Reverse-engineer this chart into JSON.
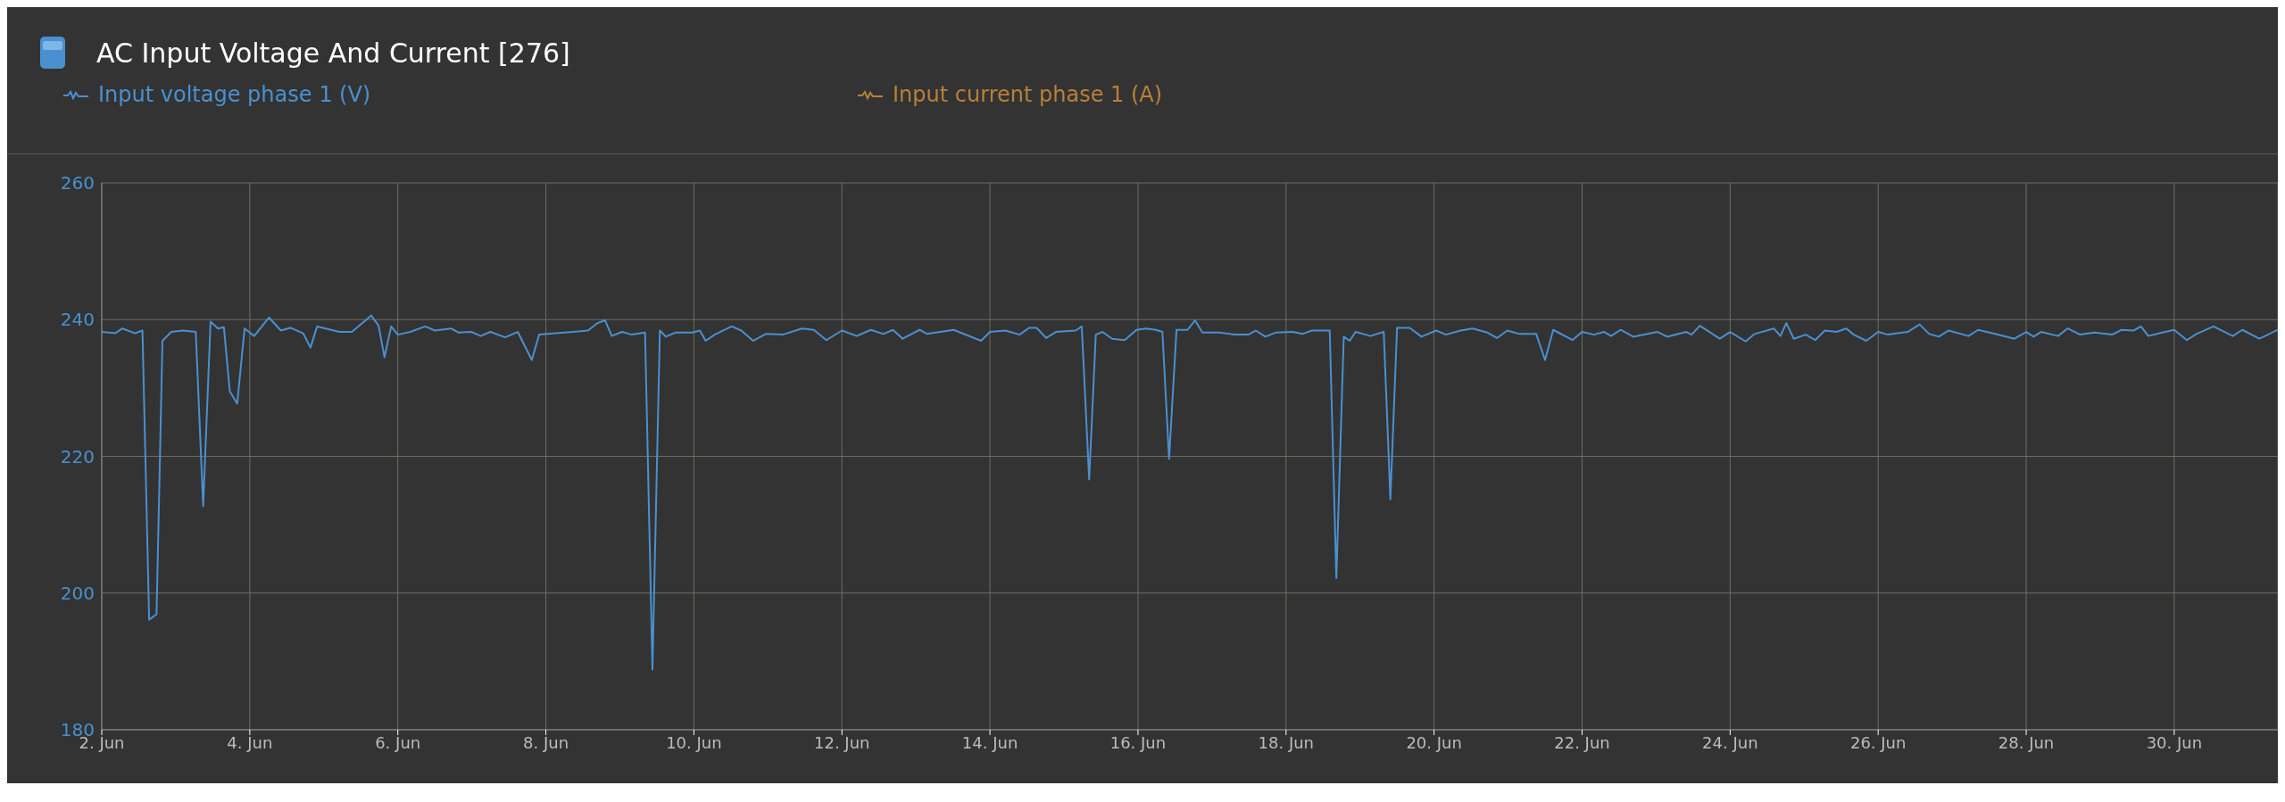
{
  "chart_data": {
    "type": "line",
    "title": "AC Input Voltage And Current [276]",
    "legend": "top left",
    "grid": true,
    "marker": "none",
    "line_style": "solid",
    "xlim": [
      "--06-02",
      "--07-01T09:36"
    ],
    "xticks": [
      {
        "value": "--06-02",
        "label": "2. Jun"
      },
      {
        "value": "--06-04",
        "label": "4. Jun"
      },
      {
        "value": "--06-06",
        "label": "6. Jun"
      },
      {
        "value": "--06-08",
        "label": "8. Jun"
      },
      {
        "value": "--06-10",
        "label": "10. Jun"
      },
      {
        "value": "--06-12",
        "label": "12. Jun"
      },
      {
        "value": "--06-14",
        "label": "14. Jun"
      },
      {
        "value": "--06-16",
        "label": "16. Jun"
      },
      {
        "value": "--06-18",
        "label": "18. Jun"
      },
      {
        "value": "--06-20",
        "label": "20. Jun"
      },
      {
        "value": "--06-22",
        "label": "22. Jun"
      },
      {
        "value": "--06-24",
        "label": "24. Jun"
      },
      {
        "value": "--06-26",
        "label": "26. Jun"
      },
      {
        "value": "--06-28",
        "label": "28. Jun"
      },
      {
        "value": "--06-30",
        "label": "30. Jun"
      }
    ],
    "ylim": [
      180,
      260
    ],
    "yticks": [
      180,
      200,
      220,
      240,
      260
    ],
    "series": [
      {
        "name": "Input voltage phase 1 (V)",
        "color": "#4a90d0",
        "x": [
          "--06-02T00:00",
          "--06-02T04:19",
          "--06-02T06:43",
          "--06-02T10:48",
          "--06-02T13:12",
          "--06-02T15:22",
          "--06-02T17:46",
          "--06-02T19:41",
          "--06-02T22:34",
          "--06-03T02:24",
          "--06-03T06:29",
          "--06-03T08:53",
          "--06-03T11:17",
          "--06-03T13:41",
          "--06-03T15:36",
          "--06-03T17:31",
          "--06-03T19:55",
          "--06-03T22:19",
          "--06-04T01:26",
          "--06-04T06:14",
          "--06-04T10:05",
          "--06-04T13:12",
          "--06-04T17:17",
          "--06-04T19:41",
          "--06-04T21:50",
          "--06-05T05:02",
          "--06-05T09:07",
          "--06-05T15:22",
          "--06-05T17:46",
          "--06-05T19:41",
          "--06-05T21:50",
          "--06-06T00:00",
          "--06-06T04:05",
          "--06-06T08:53",
          "--06-06T12:00",
          "--06-06T17:17",
          "--06-06T19:41",
          "--06-06T23:46",
          "--06-07T02:53",
          "--06-07T06:00",
          "--06-07T10:48",
          "--06-07T14:53",
          "--06-07T19:26",
          "--06-07T21:50",
          "--06-08T08:53",
          "--06-08T13:41",
          "--06-08T16:48",
          "--06-08T19:12",
          "--06-08T21:22",
          "--06-09T00:43",
          "--06-09T03:50",
          "--06-09T08:10",
          "--06-09T10:34",
          "--06-09T12:58",
          "--06-09T14:53",
          "--06-09T18:00",
          "--06-09T23:31",
          "--06-10T01:55",
          "--06-10T03:50",
          "--06-10T06:43",
          "--06-10T12:14",
          "--06-10T15:22",
          "--06-10T19:12",
          "--06-10T23:17",
          "--06-11T04:48",
          "--06-11T11:02",
          "--06-11T14:53",
          "--06-11T18:58",
          "--06-12T00:00",
          "--06-12T04:48",
          "--06-12T09:22",
          "--06-12T13:26",
          "--06-12T16:34",
          "--06-12T19:41",
          "--06-13T01:12",
          "--06-13T03:36",
          "--06-13T12:14",
          "--06-13T21:07",
          "--06-14T00:00",
          "--06-14T05:02",
          "--06-14T09:36",
          "--06-14T12:43",
          "--06-14T15:07",
          "--06-14T18:14",
          "--06-14T21:22",
          "--06-15T03:50",
          "--06-15T05:46",
          "--06-15T08:10",
          "--06-15T10:19",
          "--06-15T12:29",
          "--06-15T15:36",
          "--06-15T19:41",
          "--06-15T23:31",
          "--06-16T02:38",
          "--06-16T05:46",
          "--06-16T07:55",
          "--06-16T10:05",
          "--06-16T12:29",
          "--06-16T16:05",
          "--06-16T18:29",
          "--06-16T20:53",
          "--06-17T02:24",
          "--06-17T07:12",
          "--06-17T11:46",
          "--06-17T14:10",
          "--06-17T17:17",
          "--06-17T20:38",
          "--06-18T02:10",
          "--06-18T05:17",
          "--06-18T08:24",
          "--06-18T14:10",
          "--06-18T16:19",
          "--06-18T18:43",
          "--06-18T20:38",
          "--06-18T22:34",
          "--06-19T03:22",
          "--06-19T07:41",
          "--06-19T09:50",
          "--06-19T12:00",
          "--06-19T16:05",
          "--06-19T19:55",
          "--06-20T00:43",
          "--06-20T03:50",
          "--06-20T08:38",
          "--06-20T12:29",
          "--06-20T17:17",
          "--06-20T20:24",
          "--06-20T23:46",
          "--06-21T03:36",
          "--06-21T09:07",
          "--06-21T12:00",
          "--06-21T14:38",
          "--06-21T20:53",
          "--06-22T00:00",
          "--06-22T03:50",
          "--06-22T07:12",
          "--06-22T09:22",
          "--06-22T12:29",
          "--06-22T16:34",
          "--06-23T00:29",
          "--06-23T03:36",
          "--06-23T09:50",
          "--06-23T11:31",
          "--06-23T14:10",
          "--06-23T20:38",
          "--06-24T00:00",
          "--06-24T05:02",
          "--06-24T07:55",
          "--06-24T14:10",
          "--06-24T16:19",
          "--06-24T18:14",
          "--06-24T20:38",
          "--06-25T00:29",
          "--06-25T03:36",
          "--06-25T06:43",
          "--06-25T10:34",
          "--06-25T13:41",
          "--06-25T16:05",
          "--06-25T20:10",
          "--06-26T00:00",
          "--06-26T03:07",
          "--06-26T09:36",
          "--06-26T13:26",
          "--06-26T16:34",
          "--06-26T19:41",
          "--06-26T22:48",
          "--06-27T05:17",
          "--06-27T08:24",
          "--06-27T13:55",
          "--06-27T20:10",
          "--06-28T00:00",
          "--06-28T02:24",
          "--06-28T04:48",
          "--06-28T10:19",
          "--06-28T13:26",
          "--06-28T17:31",
          "--06-28T22:05",
          "--06-29T03:50",
          "--06-29T06:58",
          "--06-29T10:48",
          "--06-29T13:12",
          "--06-29T15:36",
          "--06-29T20:10",
          "--06-30T00:00",
          "--06-30T04:05",
          "--06-30T07:12",
          "--06-30T12:43",
          "--06-30T18:58",
          "--06-30T22:05",
          "--07-01T03:36",
          "--07-01T09:36"
        ],
        "values": [
          238.2,
          238,
          238.7,
          238,
          238.4,
          196.1,
          196.9,
          236.9,
          238.2,
          238.4,
          238.2,
          212.7,
          239.7,
          238.7,
          238.9,
          229.5,
          227.7,
          238.7,
          237.6,
          240.3,
          238.4,
          238.8,
          238,
          235.9,
          239,
          238.2,
          238.2,
          240.6,
          239.1,
          234.5,
          239,
          237.8,
          238.2,
          239,
          238.4,
          238.7,
          238.1,
          238.2,
          237.6,
          238.2,
          237.4,
          238.2,
          234.1,
          237.8,
          238.2,
          238.4,
          239.5,
          239.9,
          237.6,
          238.2,
          237.8,
          238.1,
          188.8,
          238.4,
          237.5,
          238.1,
          238.1,
          238.4,
          236.9,
          237.8,
          239,
          238.4,
          236.9,
          237.9,
          237.8,
          238.7,
          238.5,
          237,
          238.4,
          237.6,
          238.5,
          237.9,
          238.5,
          237.2,
          238.5,
          237.9,
          238.5,
          236.9,
          238.2,
          238.4,
          237.8,
          238.8,
          238.8,
          237.3,
          238.2,
          238.4,
          239,
          216.6,
          237.8,
          238.2,
          237.2,
          237,
          238.5,
          238.7,
          238.5,
          238.2,
          219.6,
          238.5,
          238.5,
          239.9,
          238.1,
          238.1,
          237.8,
          237.8,
          238.4,
          237.5,
          238.1,
          238.2,
          237.9,
          238.4,
          238.4,
          202.2,
          237.5,
          236.9,
          238.2,
          237.6,
          238.2,
          213.7,
          238.8,
          238.8,
          237.5,
          238.4,
          237.8,
          238.4,
          238.7,
          238.1,
          237.3,
          238.4,
          237.9,
          237.9,
          234.1,
          238.5,
          237,
          238.2,
          237.8,
          238.2,
          237.6,
          238.5,
          237.5,
          238.2,
          237.5,
          238.2,
          237.8,
          239.1,
          237.2,
          238.2,
          236.8,
          237.9,
          238.7,
          237.6,
          239.5,
          237.2,
          237.8,
          237,
          238.4,
          238.2,
          238.7,
          237.8,
          236.9,
          238.2,
          237.8,
          238.2,
          239.3,
          237.9,
          237.5,
          238.4,
          237.6,
          238.5,
          237.9,
          237.2,
          238.2,
          237.5,
          238.2,
          237.6,
          238.7,
          237.8,
          238.1,
          237.8,
          238.5,
          238.4,
          239,
          237.6,
          238.1,
          238.5,
          237,
          237.9,
          239,
          237.6,
          238.5,
          237.2,
          238.5
        ]
      },
      {
        "name": "Input current phase 1 (A)",
        "color": "#b8803a"
      }
    ]
  }
}
